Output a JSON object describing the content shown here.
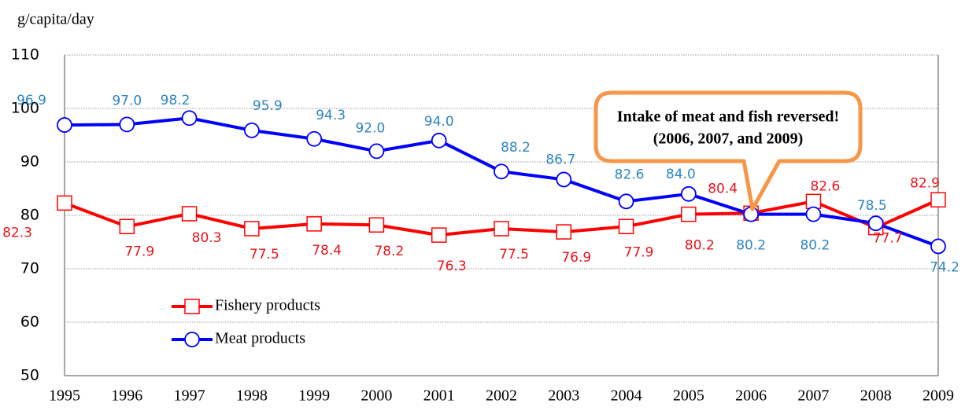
{
  "chart_data": {
    "type": "line",
    "y_axis_label": "g/capita/day",
    "categories": [
      "1995",
      "1996",
      "1997",
      "1998",
      "1999",
      "2000",
      "2001",
      "2002",
      "2003",
      "2004",
      "2005",
      "2006",
      "2007",
      "2008",
      "2009"
    ],
    "series": [
      {
        "name": "Fishery products",
        "color": "#ff0000",
        "label_color": "#e8141b",
        "marker": "square",
        "values": [
          82.3,
          77.9,
          80.3,
          77.5,
          78.4,
          78.2,
          76.3,
          77.5,
          76.9,
          77.9,
          80.2,
          80.4,
          82.6,
          77.7,
          82.9
        ],
        "value_labels": [
          "82.3",
          "77.9",
          "80.3",
          "77.5",
          "78.4",
          "78.2",
          "76.3",
          "77.5",
          "76.9",
          "77.9",
          "80.2",
          "80.4",
          "82.6",
          "77.7",
          "82.9"
        ]
      },
      {
        "name": "Meat products",
        "color": "#0000ff",
        "label_color": "#2e86c1",
        "marker": "circle",
        "values": [
          96.9,
          97,
          98.2,
          95.9,
          94.3,
          92,
          94,
          88.2,
          86.7,
          82.6,
          84,
          80.2,
          80.2,
          78.5,
          74.2
        ],
        "value_labels": [
          "96.9",
          "97.0",
          "98.2",
          "95.9",
          "94.3",
          "92.0",
          "94.0",
          "88.2",
          "86.7",
          "82.6",
          "84.0",
          "80.2",
          "80.2",
          "78.5",
          "74.2"
        ]
      }
    ],
    "ylim": [
      50,
      110
    ],
    "yticks": [
      50,
      60,
      70,
      80,
      90,
      100,
      110
    ],
    "grid": true,
    "annotation": {
      "lines": [
        "Intake of meat and fish reversed!",
        "(2006, 2007, and 2009)"
      ],
      "color": "#f79646"
    }
  }
}
